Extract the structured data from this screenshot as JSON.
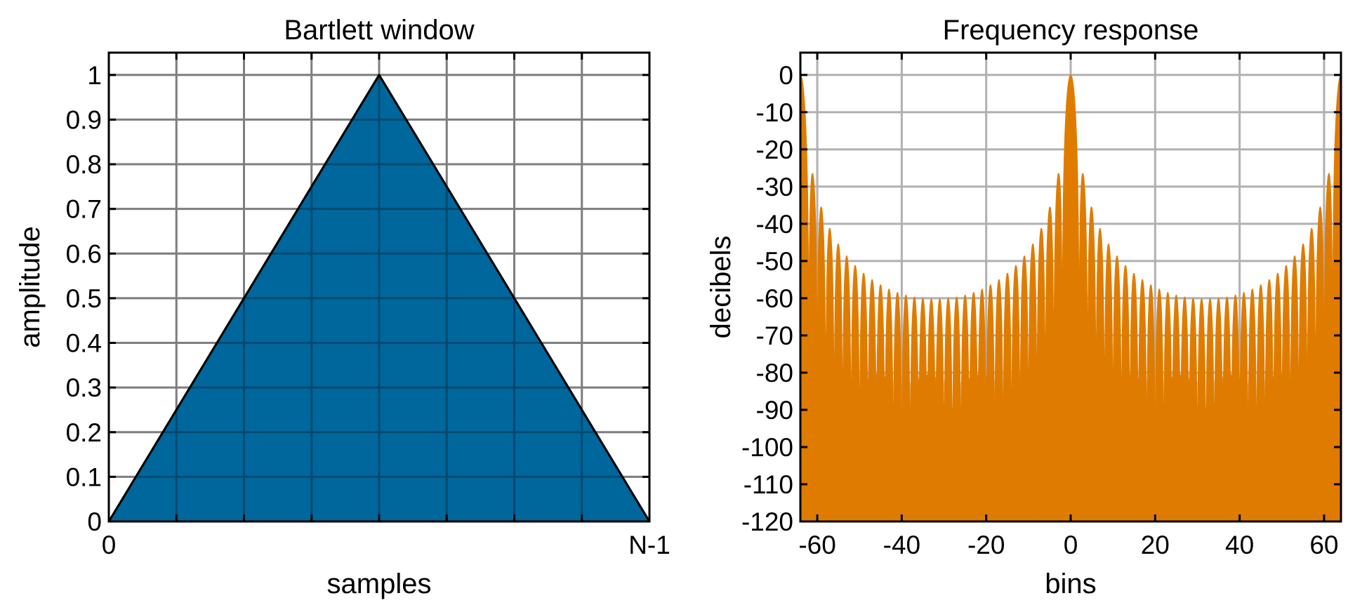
{
  "chart_data": [
    {
      "type": "area",
      "title": "Bartlett window",
      "xlabel": "samples",
      "ylabel": "amplitude",
      "xlim": [
        0,
        1
      ],
      "ylim": [
        0,
        1.05
      ],
      "x_tick_labels": [
        "0",
        "N-1"
      ],
      "x_gridlines": 8,
      "y_ticks": [
        0,
        0.1,
        0.2,
        0.3,
        0.4,
        0.5,
        0.6,
        0.7,
        0.8,
        0.9,
        1
      ],
      "y_tick_labels": [
        "0",
        "0.1",
        "0.2",
        "0.3",
        "0.4",
        "0.5",
        "0.6",
        "0.7",
        "0.8",
        "0.9",
        "1"
      ],
      "grid": true,
      "fill_color": "#00679c",
      "series": [
        {
          "x": [
            0,
            0.5,
            1
          ],
          "values": [
            0,
            1,
            0
          ]
        }
      ]
    },
    {
      "type": "area",
      "title": "Frequency response",
      "xlabel": "bins",
      "ylabel": "decibels",
      "xlim": [
        -64,
        64
      ],
      "ylim": [
        -120,
        6
      ],
      "x_ticks": [
        -60,
        -40,
        -20,
        0,
        20,
        40,
        60
      ],
      "x_tick_labels": [
        "-60",
        "-40",
        "-20",
        "0",
        "20",
        "40",
        "60"
      ],
      "y_ticks": [
        0,
        -10,
        -20,
        -30,
        -40,
        -50,
        -60,
        -70,
        -80,
        -90,
        -100,
        -110,
        -120
      ],
      "y_tick_labels": [
        "0",
        "-10",
        "-20",
        "-30",
        "-40",
        "-50",
        "-60",
        "-70",
        "-80",
        "-90",
        "-100",
        "-110",
        "-120"
      ],
      "grid": true,
      "fill_color": "#df7c00",
      "main_lobe_peak_db": 0,
      "first_sidelobe_db": -26.5,
      "edge_sidelobe_db": -77,
      "noise_floor_db": -80
    }
  ]
}
